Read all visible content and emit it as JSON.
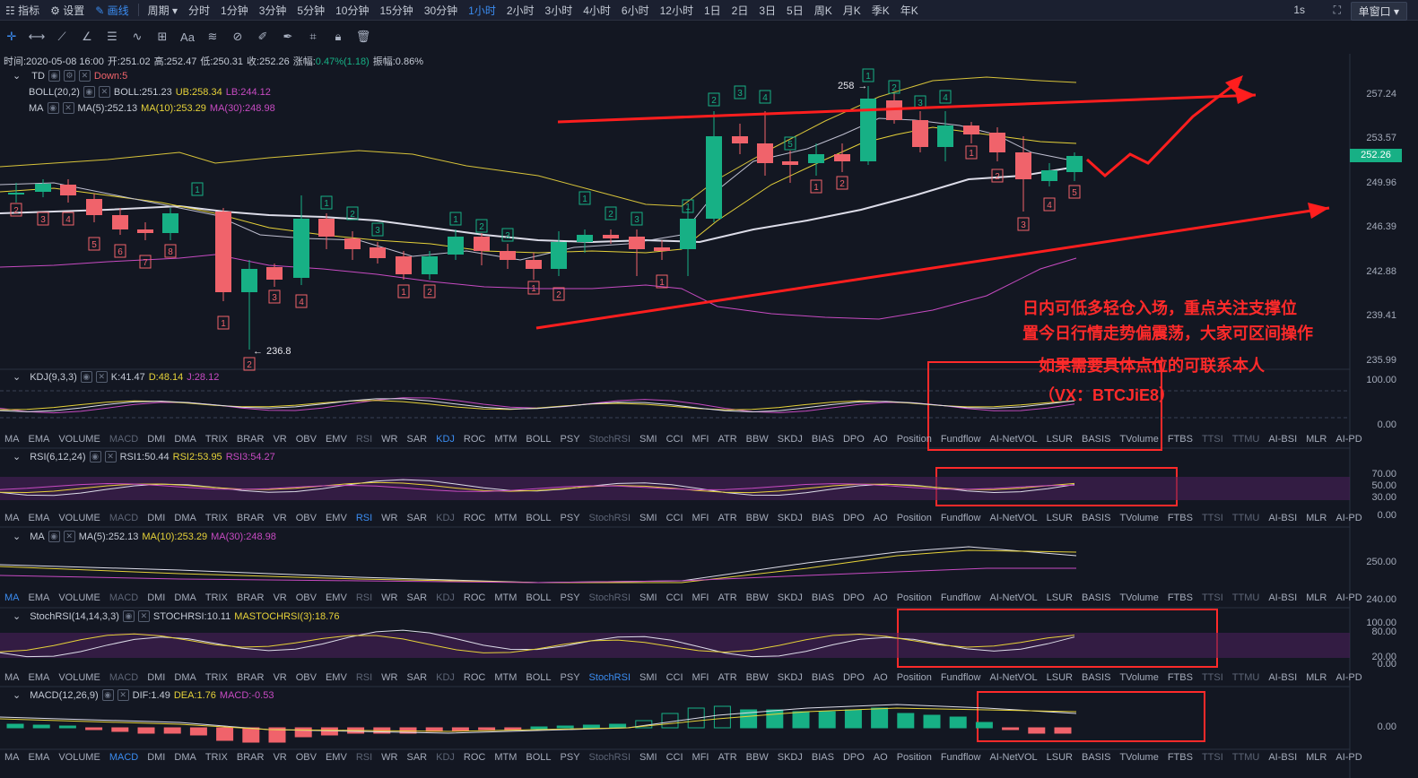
{
  "topbar": {
    "items": [
      "指标",
      "设置",
      "画线",
      "周期",
      "分时",
      "1分钟",
      "3分钟",
      "5分钟",
      "10分钟",
      "15分钟",
      "30分钟",
      "1小时",
      "2小时",
      "3小时",
      "4小时",
      "6小时",
      "12小时",
      "1日",
      "2日",
      "3日",
      "5日",
      "周K",
      "月K",
      "季K",
      "年K"
    ],
    "active_index": 11,
    "draw_active_index": 2,
    "speed": "1s",
    "window_button": "单窗口"
  },
  "info_line": {
    "time_label": "时间:2020-05-08 16:00",
    "open": "开:251.02",
    "high": "高:252.47",
    "low": "低:250.31",
    "close": "收:252.26",
    "change_label": "涨幅:",
    "change_value": "0.47%(1.18)",
    "amplitude": "振幅:0.86%"
  },
  "main_indicators": {
    "td": {
      "name": "TD",
      "value": "Down:5"
    },
    "boll": {
      "name": "BOLL(20,2)",
      "mid": "BOLL:251.23",
      "ub": "UB:258.34",
      "lb": "LB:244.12"
    },
    "ma": {
      "name": "MA",
      "ma5": "MA(5):252.13",
      "ma10": "MA(10):253.29",
      "ma30": "MA(30):248.98"
    }
  },
  "price_axis": [
    "257.24",
    "253.57",
    "249.96",
    "246.39",
    "242.88",
    "239.41",
    "235.99"
  ],
  "current_price": "252.26",
  "high_mark": "258",
  "low_mark": "236.8",
  "annotations": {
    "line1": "日内可低多轻仓入场，重点关注支撑位",
    "line2": "置今日行情走势偏震荡，大家可区间操作",
    "line3": "如果需要具体点位的可联系本人",
    "line4": "（VX：BTCJiE8）"
  },
  "indicator_tabs": [
    "MA",
    "EMA",
    "VOLUME",
    "MACD",
    "DMI",
    "DMA",
    "TRIX",
    "BRAR",
    "VR",
    "OBV",
    "EMV",
    "RSI",
    "WR",
    "SAR",
    "KDJ",
    "ROC",
    "MTM",
    "BOLL",
    "PSY",
    "StochRSI",
    "SMI",
    "CCI",
    "MFI",
    "ATR",
    "BBW",
    "SKDJ",
    "BIAS",
    "DPO",
    "AO",
    "Position",
    "Fundflow",
    "AI-NetVOL",
    "LSUR",
    "BASIS",
    "TVolume",
    "FTBS",
    "TTSI",
    "TTMU",
    "AI-BSI",
    "MLR",
    "AI-PD"
  ],
  "dim_tabs": [
    "MACD",
    "RSI",
    "KDJ",
    "StochRSI",
    "TTSI",
    "TTMU"
  ],
  "panels": {
    "kdj": {
      "name": "KDJ(9,3,3)",
      "k": "K:41.47",
      "d": "D:48.14",
      "j": "J:28.12",
      "axis": [
        "100.00",
        "0.00"
      ],
      "highlight": "KDJ"
    },
    "rsi": {
      "name": "RSI(6,12,24)",
      "r1": "RSI1:50.44",
      "r2": "RSI2:53.95",
      "r3": "RSI3:54.27",
      "axis": [
        "70.00",
        "50.00",
        "30.00",
        "0.00"
      ],
      "highlight": "RSI"
    },
    "ma": {
      "name": "MA",
      "ma5": "MA(5):252.13",
      "ma10": "MA(10):253.29",
      "ma30": "MA(30):248.98",
      "axis": [
        "250.00",
        "240.00"
      ],
      "highlight": "MA"
    },
    "stoch": {
      "name": "StochRSI(14,14,3,3)",
      "s1": "STOCHRSI:10.11",
      "s2": "MASTOCHRSI(3):18.76",
      "axis": [
        "100.00",
        "80.00",
        "20.00",
        "0.00"
      ],
      "highlight": "StochRSI"
    },
    "macd": {
      "name": "MACD(12,26,9)",
      "dif": "DIF:1.49",
      "dea": "DEA:1.76",
      "macd": "MACD:-0.53",
      "axis": [
        "0.00"
      ],
      "highlight": "MACD"
    }
  },
  "colors": {
    "up": "#17b085",
    "down": "#f0636b",
    "accent": "#3b8cf0",
    "annotation": "#ff2a2a",
    "boll_band": "#d7c33a",
    "ma30": "#c74bc2",
    "ma5": "#e8e8ef"
  }
}
